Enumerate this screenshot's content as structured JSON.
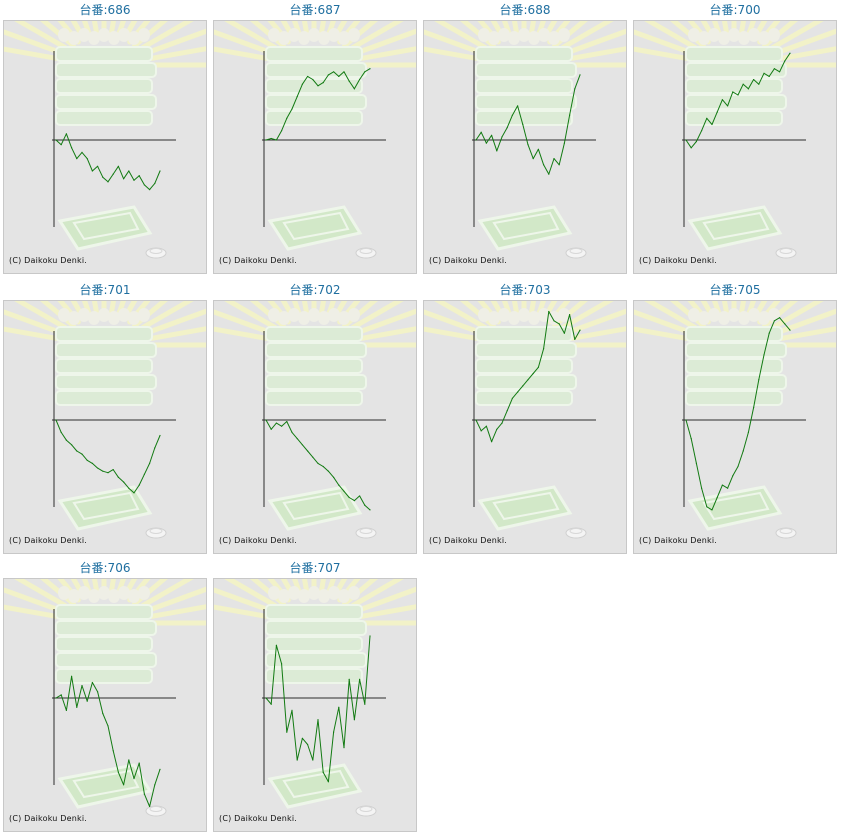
{
  "copyright": "(C) Daikoku Denki.",
  "colors": {
    "line": "#127a12",
    "axis": "#2b2b2b",
    "title": "#1f6fa0",
    "background": "#e4e4e4"
  },
  "chart_data": [
    {
      "type": "line",
      "title": "台番:686",
      "x": [
        0,
        5,
        10,
        15,
        20,
        25,
        30,
        35,
        40,
        45,
        50,
        55,
        60,
        65,
        70,
        75,
        80,
        85,
        90,
        95,
        100
      ],
      "values": [
        0,
        -3,
        4,
        -5,
        -12,
        -8,
        -12,
        -20,
        -17,
        -24,
        -27,
        -22,
        -17,
        -25,
        -20,
        -26,
        -23,
        -29,
        -32,
        -28,
        -20
      ]
    },
    {
      "type": "line",
      "title": "台番:687",
      "x": [
        0,
        5,
        10,
        15,
        20,
        25,
        30,
        35,
        40,
        45,
        50,
        55,
        60,
        65,
        70,
        75,
        80,
        85,
        90,
        95,
        100
      ],
      "values": [
        0,
        1,
        0,
        6,
        14,
        20,
        28,
        36,
        41,
        39,
        35,
        37,
        42,
        44,
        41,
        44,
        38,
        33,
        39,
        44,
        46
      ]
    },
    {
      "type": "line",
      "title": "台番:688",
      "x": [
        0,
        5,
        10,
        15,
        20,
        25,
        30,
        35,
        40,
        45,
        50,
        55,
        60,
        65,
        70,
        75,
        80,
        85,
        90,
        95,
        100
      ],
      "values": [
        0,
        5,
        -2,
        3,
        -7,
        2,
        8,
        16,
        22,
        10,
        -3,
        -12,
        -6,
        -16,
        -22,
        -12,
        -16,
        -2,
        16,
        33,
        42
      ]
    },
    {
      "type": "line",
      "title": "台番:700",
      "x": [
        0,
        5,
        10,
        15,
        20,
        25,
        30,
        35,
        40,
        45,
        50,
        55,
        60,
        65,
        70,
        75,
        80,
        85,
        90,
        95,
        100
      ],
      "values": [
        0,
        -5,
        -1,
        6,
        14,
        10,
        18,
        26,
        22,
        31,
        29,
        36,
        33,
        39,
        36,
        43,
        41,
        46,
        44,
        51,
        56
      ]
    },
    {
      "type": "line",
      "title": "台番:701",
      "x": [
        0,
        5,
        10,
        15,
        20,
        25,
        30,
        35,
        40,
        45,
        50,
        55,
        60,
        65,
        70,
        75,
        80,
        85,
        90,
        95,
        100
      ],
      "values": [
        0,
        -8,
        -13,
        -16,
        -20,
        -22,
        -26,
        -28,
        -31,
        -33,
        -34,
        -32,
        -37,
        -40,
        -44,
        -47,
        -42,
        -35,
        -28,
        -18,
        -10
      ]
    },
    {
      "type": "line",
      "title": "台番:702",
      "x": [
        0,
        5,
        10,
        15,
        20,
        25,
        30,
        35,
        40,
        45,
        50,
        55,
        60,
        65,
        70,
        75,
        80,
        85,
        90,
        95,
        100
      ],
      "values": [
        0,
        -6,
        -2,
        -4,
        -1,
        -8,
        -12,
        -16,
        -20,
        -24,
        -28,
        -30,
        -33,
        -37,
        -42,
        -46,
        -50,
        -52,
        -49,
        -55,
        -58
      ]
    },
    {
      "type": "line",
      "title": "台番:703",
      "x": [
        0,
        5,
        10,
        15,
        20,
        25,
        30,
        35,
        40,
        45,
        50,
        55,
        60,
        65,
        70,
        75,
        80,
        85,
        90,
        95,
        100
      ],
      "values": [
        0,
        -7,
        -4,
        -14,
        -6,
        -2,
        6,
        14,
        18,
        22,
        26,
        30,
        34,
        46,
        70,
        64,
        62,
        56,
        68,
        52,
        58
      ]
    },
    {
      "type": "line",
      "title": "台番:705",
      "x": [
        0,
        5,
        10,
        15,
        20,
        25,
        30,
        35,
        40,
        45,
        50,
        55,
        60,
        65,
        70,
        75,
        80,
        85,
        90,
        95,
        100
      ],
      "values": [
        0,
        -12,
        -28,
        -44,
        -56,
        -58,
        -50,
        -42,
        -44,
        -36,
        -30,
        -20,
        -8,
        8,
        26,
        42,
        56,
        64,
        66,
        62,
        58
      ]
    },
    {
      "type": "line",
      "title": "台番:706",
      "x": [
        0,
        5,
        10,
        15,
        20,
        25,
        30,
        35,
        40,
        45,
        50,
        55,
        60,
        65,
        70,
        75,
        80,
        85,
        90,
        95,
        100
      ],
      "values": [
        0,
        2,
        -8,
        14,
        -6,
        8,
        -2,
        10,
        4,
        -10,
        -18,
        -34,
        -48,
        -56,
        -40,
        -52,
        -42,
        -62,
        -70,
        -56,
        -46
      ]
    },
    {
      "type": "line",
      "title": "台番:707",
      "x": [
        0,
        5,
        10,
        15,
        20,
        25,
        30,
        35,
        40,
        45,
        50,
        55,
        60,
        65,
        70,
        75,
        80,
        85,
        90,
        95,
        100
      ],
      "values": [
        0,
        -4,
        34,
        22,
        -22,
        -8,
        -40,
        -26,
        -30,
        -40,
        -14,
        -48,
        -54,
        -22,
        -6,
        -32,
        12,
        -14,
        12,
        -4,
        40
      ]
    }
  ]
}
